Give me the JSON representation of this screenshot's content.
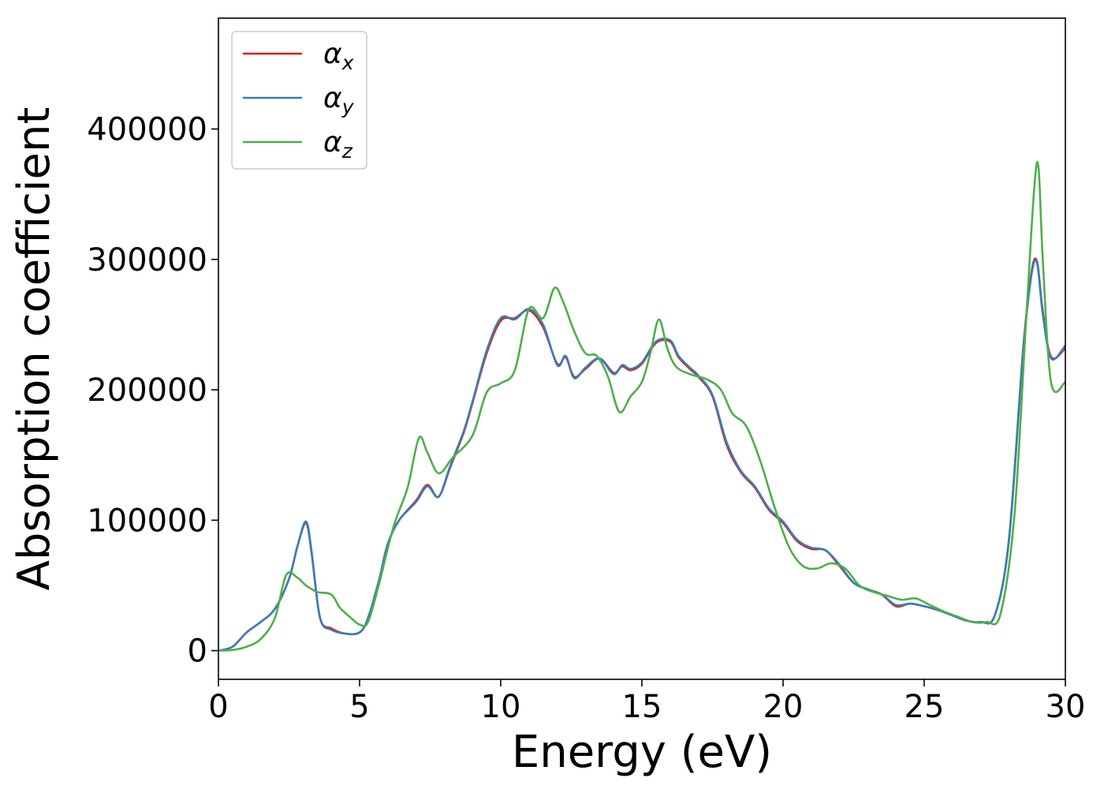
{
  "chart_data": {
    "type": "line",
    "title": "",
    "xlabel": "Energy (eV)",
    "ylabel": "Absorption coefficient",
    "xlim": [
      0,
      30
    ],
    "ylim": [
      -22000,
      485000
    ],
    "xticks": [
      0,
      5,
      10,
      15,
      20,
      25,
      30
    ],
    "yticks": [
      0,
      100000,
      200000,
      300000,
      400000
    ],
    "grid": false,
    "legend_position": "top-left",
    "series": [
      {
        "name": "α",
        "subscript": "x",
        "color": "#e41a1c",
        "x": [
          0,
          0.5,
          1,
          1.5,
          2,
          2.5,
          2.8,
          3.1,
          3.3,
          3.6,
          4,
          4.5,
          5,
          5.3,
          5.7,
          6,
          6.4,
          7,
          7.4,
          7.8,
          8.2,
          8.7,
          9,
          9.5,
          10,
          10.5,
          11,
          11.5,
          12,
          12.3,
          12.6,
          13,
          13.5,
          14,
          14.3,
          14.6,
          15,
          15.5,
          16,
          16.3,
          16.7,
          17,
          17.5,
          18,
          18.5,
          19,
          19.5,
          20,
          20.5,
          21,
          21.5,
          22,
          22.5,
          23,
          23.5,
          24,
          24.5,
          25,
          25.5,
          26,
          26.5,
          27,
          27.5,
          28,
          28.5,
          28.8,
          29,
          29.2,
          29.5,
          30
        ],
        "y": [
          0,
          3000,
          14000,
          22000,
          32000,
          55000,
          80000,
          98000,
          75000,
          25000,
          17000,
          13000,
          14000,
          25000,
          55000,
          82000,
          100000,
          115000,
          127000,
          118000,
          140000,
          168000,
          190000,
          228000,
          253000,
          255000,
          261000,
          248000,
          220000,
          225000,
          210000,
          216000,
          224000,
          213000,
          218000,
          215000,
          220000,
          236000,
          237000,
          225000,
          216000,
          210000,
          195000,
          158000,
          137000,
          125000,
          108000,
          98000,
          84000,
          78000,
          77000,
          65000,
          52000,
          47000,
          43000,
          34000,
          36000,
          34000,
          31000,
          27000,
          23000,
          22000,
          27000,
          85000,
          230000,
          290000,
          298000,
          260000,
          225000,
          232000
        ]
      },
      {
        "name": "α",
        "subscript": "y",
        "color": "#377eb8",
        "x": [
          0,
          0.5,
          1,
          1.5,
          2,
          2.5,
          2.8,
          3.1,
          3.3,
          3.6,
          4,
          4.5,
          5,
          5.3,
          5.7,
          6,
          6.4,
          7,
          7.4,
          7.8,
          8.2,
          8.7,
          9,
          9.5,
          10,
          10.5,
          11,
          11.5,
          12,
          12.3,
          12.6,
          13,
          13.5,
          14,
          14.3,
          14.6,
          15,
          15.5,
          16,
          16.3,
          16.7,
          17,
          17.5,
          18,
          18.5,
          19,
          19.5,
          20,
          20.5,
          21,
          21.5,
          22,
          22.5,
          23,
          23.5,
          24,
          24.5,
          25,
          25.5,
          26,
          26.5,
          27,
          27.5,
          28,
          28.5,
          28.8,
          29,
          29.2,
          29.5,
          30
        ],
        "y": [
          0,
          3000,
          14000,
          22000,
          32000,
          55000,
          80000,
          99000,
          76000,
          25000,
          16000,
          13000,
          14000,
          25000,
          55000,
          82000,
          100000,
          114000,
          126000,
          118000,
          141000,
          169000,
          191000,
          230000,
          255000,
          254000,
          262000,
          250000,
          219000,
          226000,
          209000,
          217000,
          224000,
          212000,
          219000,
          216000,
          221000,
          237000,
          238000,
          226000,
          217000,
          211000,
          196000,
          160000,
          138000,
          126000,
          109000,
          99000,
          85000,
          79000,
          77000,
          66000,
          52000,
          47000,
          43000,
          35000,
          36000,
          34000,
          31000,
          27000,
          23000,
          22000,
          27000,
          84000,
          228000,
          288000,
          297000,
          258000,
          224000,
          234000
        ]
      },
      {
        "name": "α",
        "subscript": "z",
        "color": "#4daf4a",
        "x": [
          0,
          0.5,
          1,
          1.5,
          2,
          2.4,
          2.8,
          3.1,
          3.5,
          4,
          4.3,
          4.7,
          5,
          5.3,
          5.7,
          6.2,
          6.7,
          7.1,
          7.4,
          7.8,
          8.3,
          9,
          9.5,
          10,
          10.5,
          11,
          11.5,
          11.9,
          12.2,
          12.6,
          13,
          13.4,
          13.8,
          14.2,
          14.6,
          15,
          15.3,
          15.6,
          15.9,
          16.2,
          16.7,
          17.3,
          17.8,
          18.2,
          18.7,
          19.2,
          19.7,
          20.2,
          20.7,
          21.2,
          21.7,
          22.2,
          22.7,
          23.2,
          23.7,
          24.2,
          24.7,
          25.2,
          25.7,
          26.2,
          26.7,
          27.2,
          27.7,
          28.2,
          28.6,
          28.9,
          29.05,
          29.2,
          29.5,
          30
        ],
        "y": [
          0,
          500,
          3000,
          9000,
          25000,
          58000,
          56000,
          50000,
          45000,
          43000,
          33000,
          25000,
          20000,
          22000,
          52000,
          95000,
          125000,
          163000,
          152000,
          136000,
          148000,
          165000,
          198000,
          205000,
          215000,
          262000,
          255000,
          278000,
          268000,
          245000,
          228000,
          226000,
          210000,
          183000,
          195000,
          206000,
          228000,
          254000,
          232000,
          218000,
          212000,
          208000,
          200000,
          182000,
          172000,
          145000,
          110000,
          80000,
          65000,
          63000,
          67000,
          63000,
          50000,
          45000,
          42000,
          39000,
          40000,
          35000,
          30000,
          26000,
          22000,
          22000,
          28000,
          105000,
          250000,
          355000,
          370000,
          300000,
          205000,
          206000
        ]
      }
    ]
  }
}
